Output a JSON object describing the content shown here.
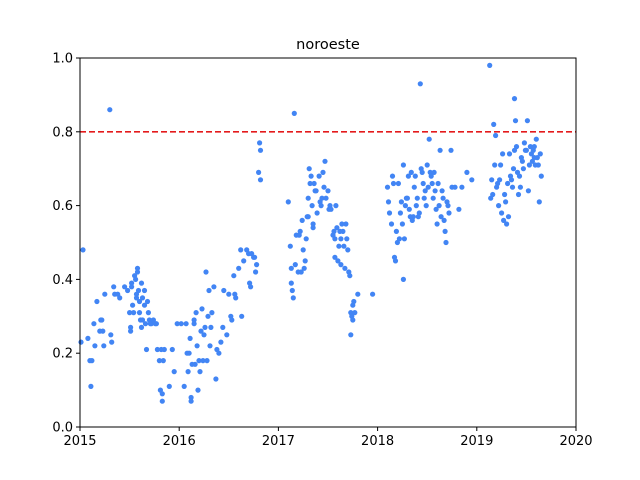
{
  "chart_data": {
    "type": "scatter",
    "title": "noroeste",
    "xlabel": "",
    "ylabel": "",
    "xlim": [
      2015,
      2020
    ],
    "ylim": [
      0.0,
      1.0
    ],
    "xticks": [
      2015,
      2016,
      2017,
      2018,
      2019,
      2020
    ],
    "xtick_labels": [
      "2015",
      "2016",
      "2017",
      "2018",
      "2019",
      "2020"
    ],
    "yticks": [
      0.0,
      0.2,
      0.4,
      0.6,
      0.8,
      1.0
    ],
    "ytick_labels": [
      "0.0",
      "0.2",
      "0.4",
      "0.6",
      "0.8",
      "1.0"
    ],
    "grid": false,
    "point_color": "#4285f4",
    "threshold": {
      "y": 0.8,
      "color": "#e41a1c",
      "style": "dashed"
    },
    "points": [
      [
        2015.03,
        0.48
      ],
      [
        2015.01,
        0.23
      ],
      [
        2015.08,
        0.24
      ],
      [
        2015.1,
        0.18
      ],
      [
        2015.11,
        0.11
      ],
      [
        2015.12,
        0.18
      ],
      [
        2015.14,
        0.28
      ],
      [
        2015.15,
        0.22
      ],
      [
        2015.17,
        0.34
      ],
      [
        2015.2,
        0.26
      ],
      [
        2015.21,
        0.29
      ],
      [
        2015.22,
        0.29
      ],
      [
        2015.23,
        0.26
      ],
      [
        2015.24,
        0.22
      ],
      [
        2015.25,
        0.36
      ],
      [
        2015.3,
        0.86
      ],
      [
        2015.31,
        0.25
      ],
      [
        2015.32,
        0.23
      ],
      [
        2015.34,
        0.38
      ],
      [
        2015.35,
        0.36
      ],
      [
        2015.38,
        0.36
      ],
      [
        2015.4,
        0.35
      ],
      [
        2015.45,
        0.38
      ],
      [
        2015.48,
        0.37
      ],
      [
        2015.5,
        0.31
      ],
      [
        2015.51,
        0.27
      ],
      [
        2015.51,
        0.26
      ],
      [
        2015.52,
        0.39
      ],
      [
        2015.52,
        0.38
      ],
      [
        2015.53,
        0.33
      ],
      [
        2015.54,
        0.31
      ],
      [
        2015.55,
        0.41
      ],
      [
        2015.56,
        0.4
      ],
      [
        2015.57,
        0.36
      ],
      [
        2015.57,
        0.35
      ],
      [
        2015.58,
        0.43
      ],
      [
        2015.58,
        0.42
      ],
      [
        2015.59,
        0.37
      ],
      [
        2015.6,
        0.34
      ],
      [
        2015.6,
        0.31
      ],
      [
        2015.61,
        0.29
      ],
      [
        2015.62,
        0.39
      ],
      [
        2015.62,
        0.27
      ],
      [
        2015.63,
        0.35
      ],
      [
        2015.63,
        0.29
      ],
      [
        2015.65,
        0.37
      ],
      [
        2015.65,
        0.33
      ],
      [
        2015.66,
        0.28
      ],
      [
        2015.67,
        0.21
      ],
      [
        2015.68,
        0.34
      ],
      [
        2015.69,
        0.31
      ],
      [
        2015.7,
        0.29
      ],
      [
        2015.71,
        0.28
      ],
      [
        2015.72,
        0.28
      ],
      [
        2015.74,
        0.29
      ],
      [
        2015.76,
        0.28
      ],
      [
        2015.77,
        0.28
      ],
      [
        2015.78,
        0.21
      ],
      [
        2015.8,
        0.18
      ],
      [
        2015.81,
        0.1
      ],
      [
        2015.82,
        0.21
      ],
      [
        2015.83,
        0.09
      ],
      [
        2015.83,
        0.07
      ],
      [
        2015.84,
        0.18
      ],
      [
        2015.85,
        0.21
      ],
      [
        2015.9,
        0.11
      ],
      [
        2015.93,
        0.21
      ],
      [
        2015.95,
        0.15
      ],
      [
        2015.98,
        0.28
      ],
      [
        2016.02,
        0.28
      ],
      [
        2016.05,
        0.11
      ],
      [
        2016.07,
        0.28
      ],
      [
        2016.08,
        0.2
      ],
      [
        2016.09,
        0.15
      ],
      [
        2016.1,
        0.2
      ],
      [
        2016.11,
        0.24
      ],
      [
        2016.12,
        0.08
      ],
      [
        2016.12,
        0.07
      ],
      [
        2016.13,
        0.17
      ],
      [
        2016.15,
        0.29
      ],
      [
        2016.15,
        0.28
      ],
      [
        2016.16,
        0.17
      ],
      [
        2016.17,
        0.31
      ],
      [
        2016.18,
        0.22
      ],
      [
        2016.19,
        0.1
      ],
      [
        2016.2,
        0.18
      ],
      [
        2016.21,
        0.15
      ],
      [
        2016.22,
        0.26
      ],
      [
        2016.23,
        0.32
      ],
      [
        2016.24,
        0.18
      ],
      [
        2016.25,
        0.25
      ],
      [
        2016.26,
        0.27
      ],
      [
        2016.27,
        0.42
      ],
      [
        2016.28,
        0.18
      ],
      [
        2016.29,
        0.3
      ],
      [
        2016.3,
        0.37
      ],
      [
        2016.31,
        0.22
      ],
      [
        2016.32,
        0.27
      ],
      [
        2016.33,
        0.31
      ],
      [
        2016.35,
        0.38
      ],
      [
        2016.37,
        0.13
      ],
      [
        2016.38,
        0.21
      ],
      [
        2016.4,
        0.2
      ],
      [
        2016.42,
        0.23
      ],
      [
        2016.44,
        0.27
      ],
      [
        2016.45,
        0.37
      ],
      [
        2016.48,
        0.25
      ],
      [
        2016.5,
        0.36
      ],
      [
        2016.52,
        0.3
      ],
      [
        2016.53,
        0.29
      ],
      [
        2016.55,
        0.41
      ],
      [
        2016.56,
        0.36
      ],
      [
        2016.57,
        0.35
      ],
      [
        2016.6,
        0.43
      ],
      [
        2016.62,
        0.48
      ],
      [
        2016.63,
        0.3
      ],
      [
        2016.65,
        0.45
      ],
      [
        2016.68,
        0.48
      ],
      [
        2016.7,
        0.47
      ],
      [
        2016.71,
        0.39
      ],
      [
        2016.72,
        0.38
      ],
      [
        2016.73,
        0.47
      ],
      [
        2016.75,
        0.46
      ],
      [
        2016.76,
        0.46
      ],
      [
        2016.77,
        0.42
      ],
      [
        2016.78,
        0.44
      ],
      [
        2016.8,
        0.69
      ],
      [
        2016.81,
        0.77
      ],
      [
        2016.82,
        0.67
      ],
      [
        2016.82,
        0.75
      ],
      [
        2017.1,
        0.61
      ],
      [
        2017.12,
        0.49
      ],
      [
        2017.13,
        0.43
      ],
      [
        2017.13,
        0.39
      ],
      [
        2017.14,
        0.37
      ],
      [
        2017.15,
        0.35
      ],
      [
        2017.16,
        0.85
      ],
      [
        2017.17,
        0.44
      ],
      [
        2017.18,
        0.52
      ],
      [
        2017.2,
        0.42
      ],
      [
        2017.21,
        0.52
      ],
      [
        2017.22,
        0.53
      ],
      [
        2017.23,
        0.42
      ],
      [
        2017.24,
        0.56
      ],
      [
        2017.25,
        0.48
      ],
      [
        2017.26,
        0.43
      ],
      [
        2017.27,
        0.45
      ],
      [
        2017.28,
        0.51
      ],
      [
        2017.29,
        0.57
      ],
      [
        2017.3,
        0.62
      ],
      [
        2017.3,
        0.57
      ],
      [
        2017.31,
        0.7
      ],
      [
        2017.32,
        0.66
      ],
      [
        2017.33,
        0.68
      ],
      [
        2017.34,
        0.6
      ],
      [
        2017.35,
        0.55
      ],
      [
        2017.35,
        0.54
      ],
      [
        2017.36,
        0.66
      ],
      [
        2017.37,
        0.64
      ],
      [
        2017.38,
        0.64
      ],
      [
        2017.39,
        0.58
      ],
      [
        2017.41,
        0.68
      ],
      [
        2017.42,
        0.61
      ],
      [
        2017.43,
        0.6
      ],
      [
        2017.44,
        0.62
      ],
      [
        2017.45,
        0.69
      ],
      [
        2017.46,
        0.65
      ],
      [
        2017.47,
        0.72
      ],
      [
        2017.48,
        0.62
      ],
      [
        2017.5,
        0.64
      ],
      [
        2017.51,
        0.59
      ],
      [
        2017.52,
        0.6
      ],
      [
        2017.53,
        0.59
      ],
      [
        2017.55,
        0.52
      ],
      [
        2017.56,
        0.53
      ],
      [
        2017.57,
        0.51
      ],
      [
        2017.57,
        0.46
      ],
      [
        2017.58,
        0.6
      ],
      [
        2017.59,
        0.54
      ],
      [
        2017.6,
        0.45
      ],
      [
        2017.61,
        0.49
      ],
      [
        2017.62,
        0.53
      ],
      [
        2017.63,
        0.51
      ],
      [
        2017.63,
        0.44
      ],
      [
        2017.64,
        0.55
      ],
      [
        2017.65,
        0.53
      ],
      [
        2017.66,
        0.49
      ],
      [
        2017.67,
        0.43
      ],
      [
        2017.68,
        0.55
      ],
      [
        2017.69,
        0.51
      ],
      [
        2017.7,
        0.48
      ],
      [
        2017.71,
        0.42
      ],
      [
        2017.72,
        0.41
      ],
      [
        2017.73,
        0.31
      ],
      [
        2017.73,
        0.25
      ],
      [
        2017.74,
        0.3
      ],
      [
        2017.75,
        0.33
      ],
      [
        2017.75,
        0.29
      ],
      [
        2017.76,
        0.34
      ],
      [
        2017.77,
        0.31
      ],
      [
        2017.8,
        0.36
      ],
      [
        2017.95,
        0.36
      ],
      [
        2018.1,
        0.65
      ],
      [
        2018.11,
        0.61
      ],
      [
        2018.12,
        0.58
      ],
      [
        2018.14,
        0.55
      ],
      [
        2018.15,
        0.68
      ],
      [
        2018.16,
        0.66
      ],
      [
        2018.17,
        0.46
      ],
      [
        2018.18,
        0.45
      ],
      [
        2018.19,
        0.53
      ],
      [
        2018.2,
        0.5
      ],
      [
        2018.21,
        0.66
      ],
      [
        2018.22,
        0.51
      ],
      [
        2018.23,
        0.58
      ],
      [
        2018.24,
        0.61
      ],
      [
        2018.25,
        0.55
      ],
      [
        2018.26,
        0.4
      ],
      [
        2018.26,
        0.71
      ],
      [
        2018.27,
        0.51
      ],
      [
        2018.28,
        0.6
      ],
      [
        2018.29,
        0.62
      ],
      [
        2018.3,
        0.62
      ],
      [
        2018.31,
        0.68
      ],
      [
        2018.32,
        0.59
      ],
      [
        2018.33,
        0.57
      ],
      [
        2018.34,
        0.69
      ],
      [
        2018.35,
        0.56
      ],
      [
        2018.36,
        0.57
      ],
      [
        2018.37,
        0.65
      ],
      [
        2018.38,
        0.68
      ],
      [
        2018.39,
        0.6
      ],
      [
        2018.4,
        0.62
      ],
      [
        2018.41,
        0.57
      ],
      [
        2018.42,
        0.58
      ],
      [
        2018.43,
        0.93
      ],
      [
        2018.44,
        0.7
      ],
      [
        2018.45,
        0.69
      ],
      [
        2018.46,
        0.66
      ],
      [
        2018.47,
        0.62
      ],
      [
        2018.48,
        0.64
      ],
      [
        2018.49,
        0.6
      ],
      [
        2018.5,
        0.71
      ],
      [
        2018.51,
        0.65
      ],
      [
        2018.52,
        0.78
      ],
      [
        2018.53,
        0.69
      ],
      [
        2018.54,
        0.68
      ],
      [
        2018.55,
        0.66
      ],
      [
        2018.56,
        0.62
      ],
      [
        2018.57,
        0.69
      ],
      [
        2018.58,
        0.64
      ],
      [
        2018.59,
        0.59
      ],
      [
        2018.6,
        0.55
      ],
      [
        2018.61,
        0.66
      ],
      [
        2018.62,
        0.6
      ],
      [
        2018.63,
        0.75
      ],
      [
        2018.64,
        0.57
      ],
      [
        2018.65,
        0.64
      ],
      [
        2018.66,
        0.62
      ],
      [
        2018.67,
        0.56
      ],
      [
        2018.68,
        0.53
      ],
      [
        2018.69,
        0.5
      ],
      [
        2018.7,
        0.61
      ],
      [
        2018.71,
        0.6
      ],
      [
        2018.72,
        0.58
      ],
      [
        2018.74,
        0.75
      ],
      [
        2018.75,
        0.65
      ],
      [
        2018.78,
        0.65
      ],
      [
        2018.82,
        0.59
      ],
      [
        2018.85,
        0.65
      ],
      [
        2018.9,
        0.69
      ],
      [
        2018.95,
        0.67
      ],
      [
        2019.13,
        0.98
      ],
      [
        2019.14,
        0.62
      ],
      [
        2019.15,
        0.67
      ],
      [
        2019.16,
        0.63
      ],
      [
        2019.17,
        0.82
      ],
      [
        2019.18,
        0.71
      ],
      [
        2019.19,
        0.79
      ],
      [
        2019.2,
        0.65
      ],
      [
        2019.21,
        0.66
      ],
      [
        2019.22,
        0.6
      ],
      [
        2019.23,
        0.67
      ],
      [
        2019.24,
        0.71
      ],
      [
        2019.25,
        0.58
      ],
      [
        2019.26,
        0.74
      ],
      [
        2019.27,
        0.56
      ],
      [
        2019.28,
        0.63
      ],
      [
        2019.29,
        0.61
      ],
      [
        2019.3,
        0.55
      ],
      [
        2019.31,
        0.66
      ],
      [
        2019.32,
        0.57
      ],
      [
        2019.33,
        0.74
      ],
      [
        2019.34,
        0.68
      ],
      [
        2019.35,
        0.67
      ],
      [
        2019.36,
        0.65
      ],
      [
        2019.37,
        0.7
      ],
      [
        2019.38,
        0.75
      ],
      [
        2019.38,
        0.89
      ],
      [
        2019.39,
        0.83
      ],
      [
        2019.4,
        0.76
      ],
      [
        2019.41,
        0.69
      ],
      [
        2019.42,
        0.63
      ],
      [
        2019.43,
        0.68
      ],
      [
        2019.44,
        0.65
      ],
      [
        2019.45,
        0.73
      ],
      [
        2019.46,
        0.72
      ],
      [
        2019.47,
        0.7
      ],
      [
        2019.48,
        0.77
      ],
      [
        2019.49,
        0.75
      ],
      [
        2019.5,
        0.75
      ],
      [
        2019.51,
        0.83
      ],
      [
        2019.52,
        0.64
      ],
      [
        2019.53,
        0.71
      ],
      [
        2019.54,
        0.76
      ],
      [
        2019.55,
        0.74
      ],
      [
        2019.56,
        0.72
      ],
      [
        2019.57,
        0.75
      ],
      [
        2019.58,
        0.73
      ],
      [
        2019.58,
        0.76
      ],
      [
        2019.59,
        0.71
      ],
      [
        2019.6,
        0.78
      ],
      [
        2019.61,
        0.73
      ],
      [
        2019.62,
        0.71
      ],
      [
        2019.63,
        0.61
      ],
      [
        2019.64,
        0.74
      ],
      [
        2019.65,
        0.68
      ]
    ]
  }
}
